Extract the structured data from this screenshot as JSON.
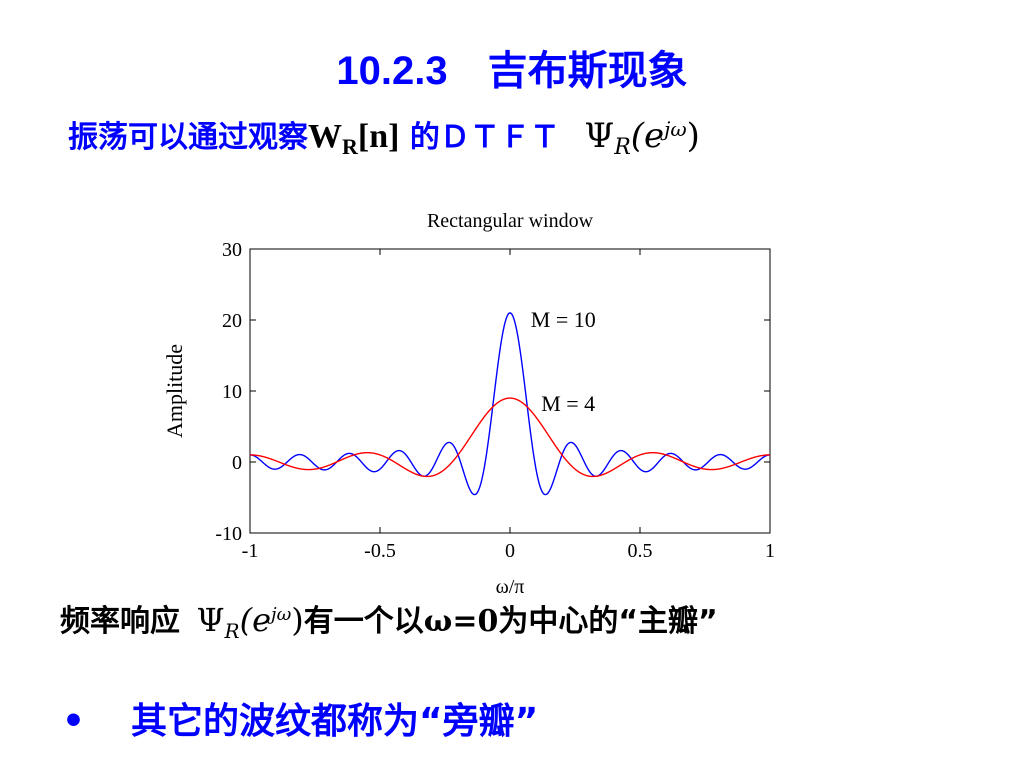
{
  "title": "10.2.3　吉布斯现象",
  "subtitle": {
    "text_before": "振荡可以通过观察",
    "w_letter": "W",
    "w_subscript": "R",
    "w_index": "[n]",
    "text_after": " 的ＤＴＦＴ",
    "psi_symbol": "Ψ",
    "psi_subscript": "R",
    "psi_arg": "(e",
    "psi_exponent": "jω",
    "psi_close": ")"
  },
  "bottom_line": {
    "text_before": "频率响应",
    "psi_symbol": "Ψ",
    "psi_subscript": "R",
    "psi_arg": "(e",
    "psi_exponent": "jω",
    "psi_close": ")",
    "text_middle": "有一个以",
    "omega_eq": "ω=0",
    "text_after": "为中心的“主瓣”"
  },
  "bullet": {
    "marker": "•",
    "text": "其它的波纹都称为“旁瓣”"
  },
  "chart_data": {
    "type": "line",
    "title": "Rectangular window",
    "xlabel": "ω/π",
    "ylabel": "Amplitude",
    "xlim": [
      -1,
      1
    ],
    "ylim": [
      -10,
      30
    ],
    "xticks": [
      "-1",
      "-0.5",
      "0",
      "0.5",
      "1"
    ],
    "yticks": [
      "-10",
      "0",
      "10",
      "20",
      "30"
    ],
    "grid": false,
    "series": [
      {
        "name": "M = 10",
        "M": 10,
        "color": "#0000ff",
        "label": "M = 10"
      },
      {
        "name": "M = 4",
        "M": 4,
        "color": "#ff0000",
        "label": "M = 4"
      }
    ]
  }
}
